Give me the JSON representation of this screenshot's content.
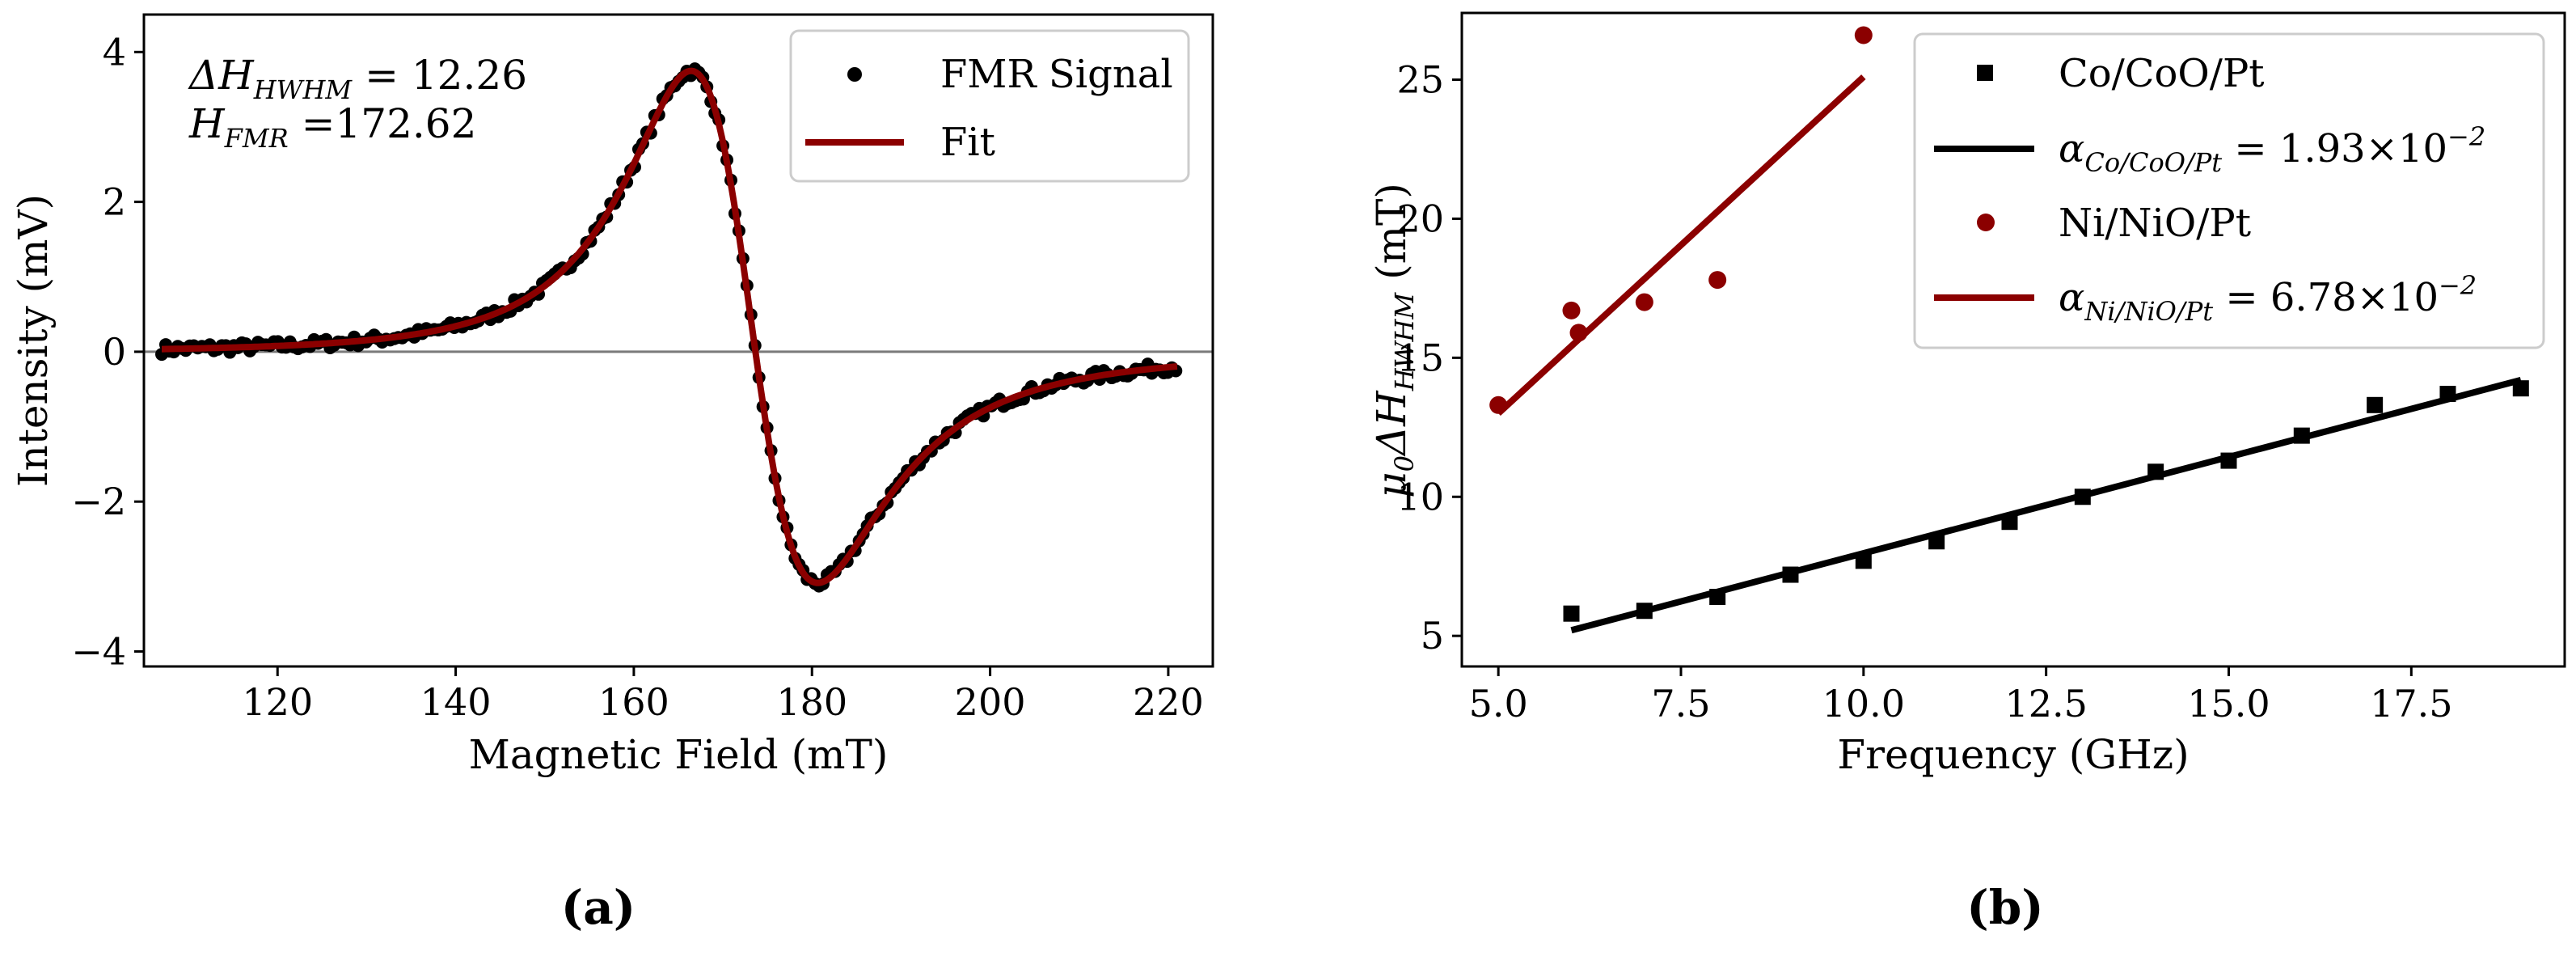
{
  "chart_data": [
    {
      "id": "a",
      "type": "scatter",
      "caption": "(a)",
      "xlabel": "Magnetic Field (mT)",
      "ylabel": "Intensity (mV)",
      "xlim": [
        105,
        225
      ],
      "ylim": [
        -4.2,
        4.5
      ],
      "xticks": [
        120,
        140,
        160,
        180,
        200,
        220
      ],
      "yticks": [
        4,
        2,
        0,
        -2,
        -4
      ],
      "xtick_labels": [
        "120",
        "140",
        "160",
        "180",
        "200",
        "220"
      ],
      "ytick_labels": [
        "4",
        "2",
        "0",
        "−2",
        "−4"
      ],
      "hline": 0,
      "colors": {
        "signal": "#000000",
        "fit": "#8b0000",
        "zero_line": "#7a7a7a"
      },
      "annotation": {
        "hwhm_prefix": "ΔH",
        "hwhm_sub": "HWHM",
        "hwhm_value": " = 12.26",
        "hfmr_prefix": "H",
        "hfmr_sub": "FMR",
        "hfmr_value": " =172.62"
      },
      "legend": {
        "signal": "FMR Signal",
        "fit": "Fit",
        "position": "top-right"
      },
      "model": {
        "kind": "lorentzian-derivative",
        "center": 172.62,
        "hwhm": 12.26,
        "dispersion_mix": 0.17,
        "amplitude": 4.0,
        "range": [
          107,
          221
        ]
      }
    },
    {
      "id": "b",
      "type": "scatter",
      "caption": "(b)",
      "xlabel": "Frequency (GHz)",
      "ylabel_prefix": "μ",
      "ylabel_sub0": "0",
      "ylabel_mid": "ΔH",
      "ylabel_sub": "HWHM",
      "ylabel_suffix": " (mT)",
      "xlim": [
        4.5,
        19.6
      ],
      "ylim": [
        3.9,
        27.4
      ],
      "xticks": [
        5.0,
        7.5,
        10.0,
        12.5,
        15.0,
        17.5
      ],
      "yticks": [
        5,
        10,
        15,
        20,
        25
      ],
      "xtick_labels": [
        "5.0",
        "7.5",
        "10.0",
        "12.5",
        "15.0",
        "17.5"
      ],
      "ytick_labels": [
        "5",
        "10",
        "15",
        "20",
        "25"
      ],
      "series": [
        {
          "name": "Co/CoO/Pt",
          "marker": "square",
          "color": "#000000",
          "x": [
            6,
            7,
            8,
            9,
            10,
            11,
            12,
            13,
            14,
            15,
            16,
            17,
            18,
            19
          ],
          "y": [
            5.8,
            5.9,
            6.4,
            7.2,
            7.7,
            8.4,
            9.1,
            10.0,
            10.9,
            11.3,
            12.2,
            13.3,
            13.7,
            13.9
          ]
        },
        {
          "name": "Ni/NiO/Pt",
          "marker": "circle",
          "color": "#8b0000",
          "x": [
            5,
            6,
            6.1,
            7,
            8,
            10
          ],
          "y": [
            13.3,
            16.7,
            15.9,
            17.0,
            17.8,
            26.6
          ]
        }
      ],
      "fits": [
        {
          "name_prefix": "α",
          "name_sub": "Co/CoO/Pt",
          "name_value": " = 1.93×10",
          "name_exp": "−2",
          "color": "#000000",
          "x": [
            6,
            19
          ],
          "y": [
            5.2,
            14.2
          ]
        },
        {
          "name_prefix": "α",
          "name_sub": "Ni/NiO/Pt",
          "name_value": " = 6.78×10",
          "name_exp": "−2",
          "color": "#8b0000",
          "x": [
            5,
            10
          ],
          "y": [
            13.0,
            25.1
          ]
        }
      ],
      "legend_position": "top-right"
    }
  ]
}
